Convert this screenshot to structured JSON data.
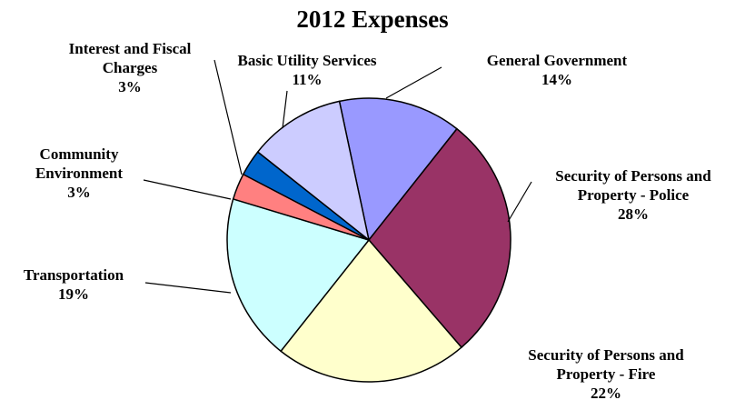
{
  "chart_data": {
    "type": "pie",
    "title": "2012 Expenses",
    "slices": [
      {
        "lines": [
          "General Government"
        ],
        "pct": "14%",
        "value": 14,
        "color": "#9999FF"
      },
      {
        "lines": [
          "Security of Persons and",
          "Property - Police"
        ],
        "pct": "28%",
        "value": 28,
        "color": "#993366"
      },
      {
        "lines": [
          "Security of Persons and",
          "Property - Fire"
        ],
        "pct": "22%",
        "value": 22,
        "color": "#FFFFCC"
      },
      {
        "lines": [
          "Transportation"
        ],
        "pct": "19%",
        "value": 19,
        "color": "#CCFFFF"
      },
      {
        "lines": [
          "Community",
          "Environment"
        ],
        "pct": "3%",
        "value": 3,
        "color": "#FF8080"
      },
      {
        "lines": [
          "Interest and Fiscal",
          "Charges"
        ],
        "pct": "3%",
        "value": 3,
        "color": "#0066CC"
      },
      {
        "lines": [
          "Basic Utility Services"
        ],
        "pct": "11%",
        "value": 11,
        "color": "#CCCCFF"
      }
    ]
  }
}
